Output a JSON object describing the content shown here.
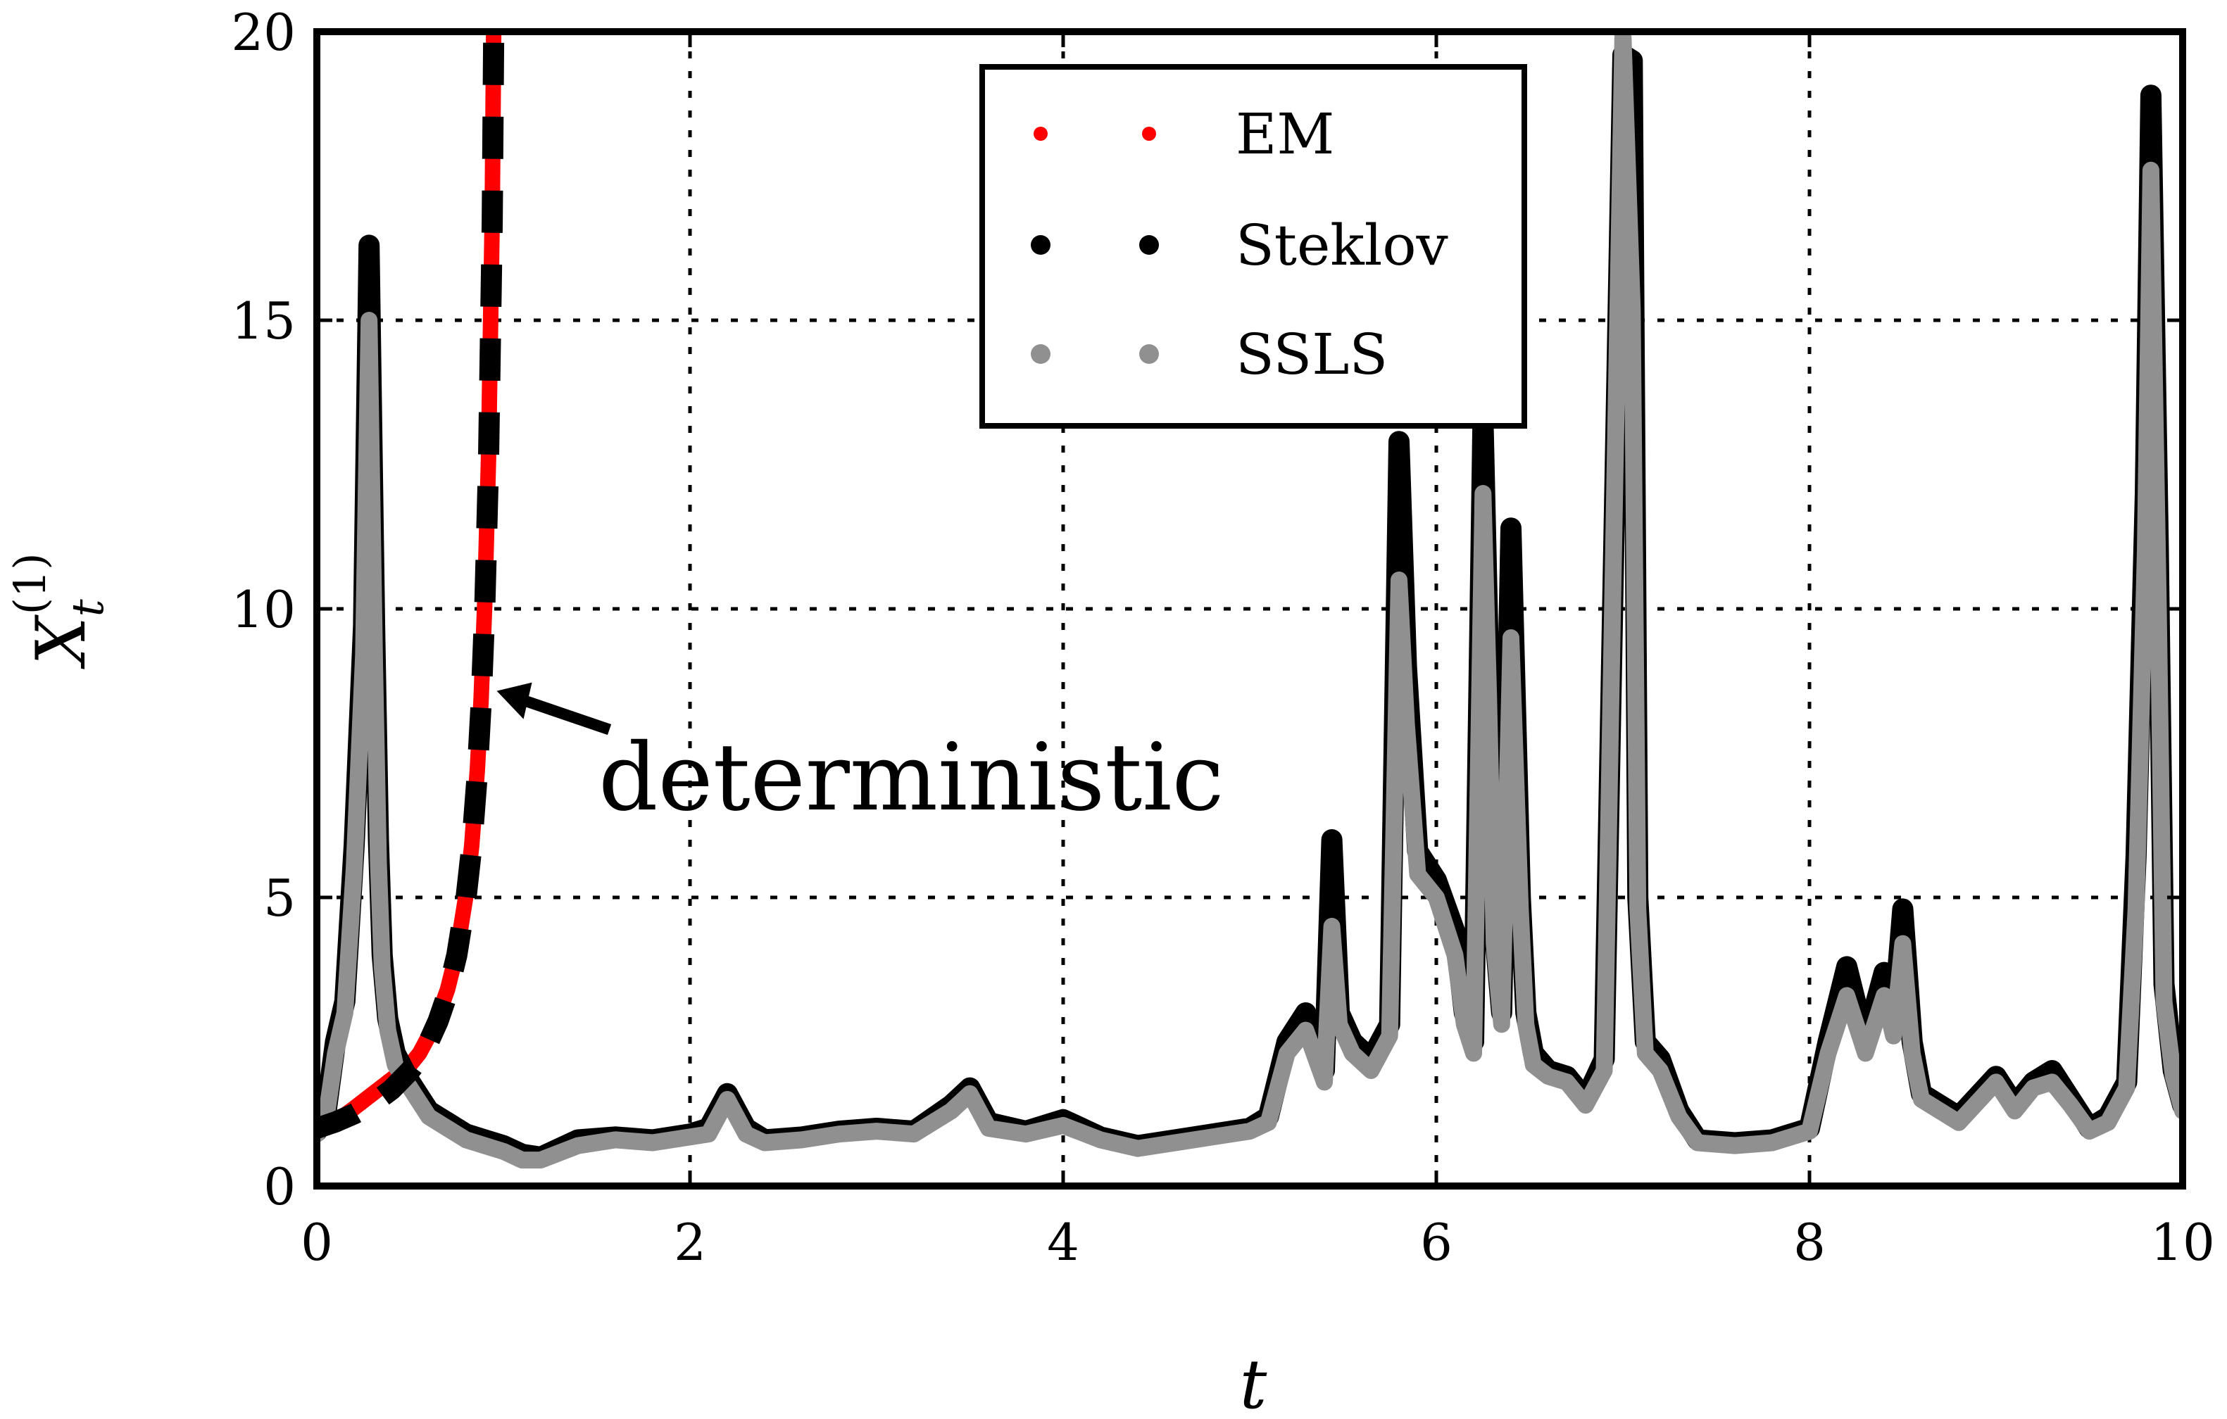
{
  "chart_data": {
    "type": "line",
    "title": "",
    "xlabel": "t",
    "ylabel_main": "X",
    "ylabel_sub": "t",
    "ylabel_sup": "(1)",
    "xlim": [
      0,
      10
    ],
    "ylim": [
      0,
      20
    ],
    "xticks": [
      0,
      2,
      4,
      6,
      8,
      10
    ],
    "yticks": [
      0,
      5,
      10,
      15,
      20
    ],
    "xtick_labels": [
      "0",
      "2",
      "4",
      "6",
      "8",
      "10"
    ],
    "ytick_labels": [
      "0",
      "5",
      "10",
      "15",
      "20"
    ],
    "grid": true,
    "legend_position": "top-center",
    "annotation": {
      "text": "deterministic",
      "points_to": [
        0.87,
        8.7
      ]
    },
    "deterministic": {
      "name": "deterministic",
      "x": [
        0.0,
        0.1,
        0.2,
        0.3,
        0.4,
        0.5,
        0.55,
        0.6,
        0.65,
        0.7,
        0.75,
        0.8,
        0.83,
        0.86,
        0.88,
        0.9,
        0.92,
        0.94,
        0.96
      ],
      "y": [
        1.0,
        1.11,
        1.25,
        1.43,
        1.67,
        2.0,
        2.22,
        2.5,
        2.86,
        3.33,
        4.0,
        5.0,
        5.88,
        7.14,
        8.33,
        10.0,
        12.5,
        16.7,
        25.0
      ]
    },
    "series": [
      {
        "name": "EM",
        "color": "#ff0000",
        "x": [
          0.0,
          0.1,
          0.2,
          0.3,
          0.4,
          0.5,
          0.55,
          0.6,
          0.65,
          0.7,
          0.75,
          0.8,
          0.83,
          0.86,
          0.88,
          0.9,
          0.92,
          0.94,
          0.96
        ],
        "y": [
          1.0,
          1.11,
          1.35,
          1.6,
          1.85,
          2.1,
          2.3,
          2.6,
          2.95,
          3.4,
          4.05,
          5.05,
          5.9,
          7.2,
          8.4,
          10.1,
          12.6,
          16.8,
          25.0
        ]
      },
      {
        "name": "Steklov",
        "color": "#000000",
        "x": [
          0.0,
          0.05,
          0.1,
          0.15,
          0.2,
          0.25,
          0.28,
          0.31,
          0.33,
          0.35,
          0.38,
          0.42,
          0.5,
          0.6,
          0.7,
          0.8,
          0.9,
          1.0,
          1.1,
          1.2,
          1.4,
          1.6,
          1.8,
          2.0,
          2.1,
          2.2,
          2.3,
          2.4,
          2.6,
          2.8,
          3.0,
          3.2,
          3.4,
          3.5,
          3.6,
          3.8,
          4.0,
          4.2,
          4.4,
          4.6,
          4.8,
          5.0,
          5.1,
          5.2,
          5.3,
          5.4,
          5.44,
          5.48,
          5.55,
          5.65,
          5.75,
          5.8,
          5.84,
          5.9,
          6.0,
          6.1,
          6.15,
          6.2,
          6.25,
          6.28,
          6.31,
          6.35,
          6.4,
          6.45,
          6.48,
          6.52,
          6.6,
          6.7,
          6.8,
          6.9,
          7.0,
          7.05,
          7.08,
          7.12,
          7.2,
          7.3,
          7.4,
          7.6,
          7.8,
          8.0,
          8.1,
          8.2,
          8.3,
          8.4,
          8.45,
          8.5,
          8.55,
          8.6,
          8.8,
          9.0,
          9.1,
          9.2,
          9.3,
          9.4,
          9.5,
          9.6,
          9.7,
          9.75,
          9.8,
          9.83,
          9.87,
          9.9,
          9.95,
          10.0
        ],
        "y": [
          0.95,
          1.3,
          2.5,
          3.2,
          5.9,
          9.7,
          16.3,
          9.7,
          6.0,
          4.0,
          2.9,
          2.3,
          1.8,
          1.3,
          1.1,
          0.9,
          0.8,
          0.7,
          0.55,
          0.5,
          0.8,
          0.85,
          0.8,
          0.9,
          1.0,
          1.6,
          1.0,
          0.8,
          0.85,
          0.95,
          1.0,
          0.95,
          1.4,
          1.7,
          1.1,
          0.95,
          1.15,
          0.85,
          0.7,
          0.8,
          0.9,
          1.0,
          1.2,
          2.5,
          3.0,
          2.0,
          6.0,
          3.0,
          2.5,
          2.2,
          2.8,
          12.9,
          9.0,
          5.8,
          5.3,
          4.4,
          3.0,
          2.5,
          13.3,
          9.0,
          4.5,
          3.0,
          11.4,
          5.0,
          3.0,
          2.3,
          2.0,
          1.9,
          1.5,
          2.2,
          19.6,
          19.5,
          5.0,
          2.5,
          2.2,
          1.3,
          0.8,
          0.75,
          0.8,
          1.0,
          2.5,
          3.8,
          2.5,
          3.7,
          2.8,
          4.8,
          2.5,
          1.6,
          1.2,
          1.9,
          1.4,
          1.8,
          2.0,
          1.5,
          1.0,
          1.2,
          1.8,
          5.7,
          12.0,
          18.9,
          11.0,
          3.5,
          2.0,
          1.4
        ]
      },
      {
        "name": "SSLS",
        "color": "#909090",
        "x": [
          0.0,
          0.05,
          0.1,
          0.15,
          0.2,
          0.25,
          0.28,
          0.31,
          0.33,
          0.35,
          0.38,
          0.42,
          0.5,
          0.6,
          0.7,
          0.8,
          0.9,
          1.0,
          1.1,
          1.2,
          1.4,
          1.6,
          1.8,
          2.0,
          2.1,
          2.2,
          2.3,
          2.4,
          2.6,
          2.8,
          3.0,
          3.2,
          3.4,
          3.5,
          3.6,
          3.8,
          4.0,
          4.2,
          4.4,
          4.6,
          4.8,
          5.0,
          5.1,
          5.2,
          5.3,
          5.4,
          5.44,
          5.48,
          5.55,
          5.65,
          5.75,
          5.8,
          5.84,
          5.9,
          6.0,
          6.1,
          6.15,
          6.2,
          6.25,
          6.28,
          6.31,
          6.35,
          6.4,
          6.45,
          6.48,
          6.52,
          6.6,
          6.7,
          6.8,
          6.9,
          7.0,
          7.05,
          7.08,
          7.12,
          7.2,
          7.3,
          7.4,
          7.6,
          7.8,
          8.0,
          8.1,
          8.2,
          8.3,
          8.4,
          8.45,
          8.5,
          8.55,
          8.6,
          8.8,
          9.0,
          9.1,
          9.2,
          9.3,
          9.4,
          9.5,
          9.6,
          9.7,
          9.75,
          9.8,
          9.83,
          9.87,
          9.9,
          9.95,
          10.0
        ],
        "y": [
          0.9,
          1.2,
          2.3,
          3.0,
          5.5,
          9.2,
          15.0,
          9.0,
          5.6,
          3.8,
          2.7,
          2.1,
          1.7,
          1.2,
          1.0,
          0.8,
          0.7,
          0.6,
          0.45,
          0.45,
          0.7,
          0.8,
          0.75,
          0.85,
          0.9,
          1.5,
          0.9,
          0.75,
          0.8,
          0.9,
          0.95,
          0.9,
          1.3,
          1.6,
          1.0,
          0.9,
          1.05,
          0.8,
          0.65,
          0.75,
          0.85,
          0.95,
          1.1,
          2.3,
          2.7,
          1.8,
          4.5,
          2.8,
          2.3,
          2.0,
          2.6,
          10.5,
          8.0,
          5.4,
          5.0,
          4.0,
          2.8,
          2.3,
          12.0,
          8.5,
          4.2,
          2.8,
          9.5,
          4.8,
          2.8,
          2.1,
          1.9,
          1.8,
          1.4,
          2.0,
          20.0,
          15.2,
          4.8,
          2.3,
          2.0,
          1.2,
          0.75,
          0.7,
          0.75,
          0.95,
          2.3,
          3.3,
          2.3,
          3.3,
          2.6,
          4.2,
          2.3,
          1.5,
          1.1,
          1.8,
          1.3,
          1.7,
          1.8,
          1.4,
          0.95,
          1.1,
          1.7,
          4.8,
          11.0,
          17.6,
          10.0,
          3.2,
          1.9,
          1.3
        ]
      }
    ]
  }
}
